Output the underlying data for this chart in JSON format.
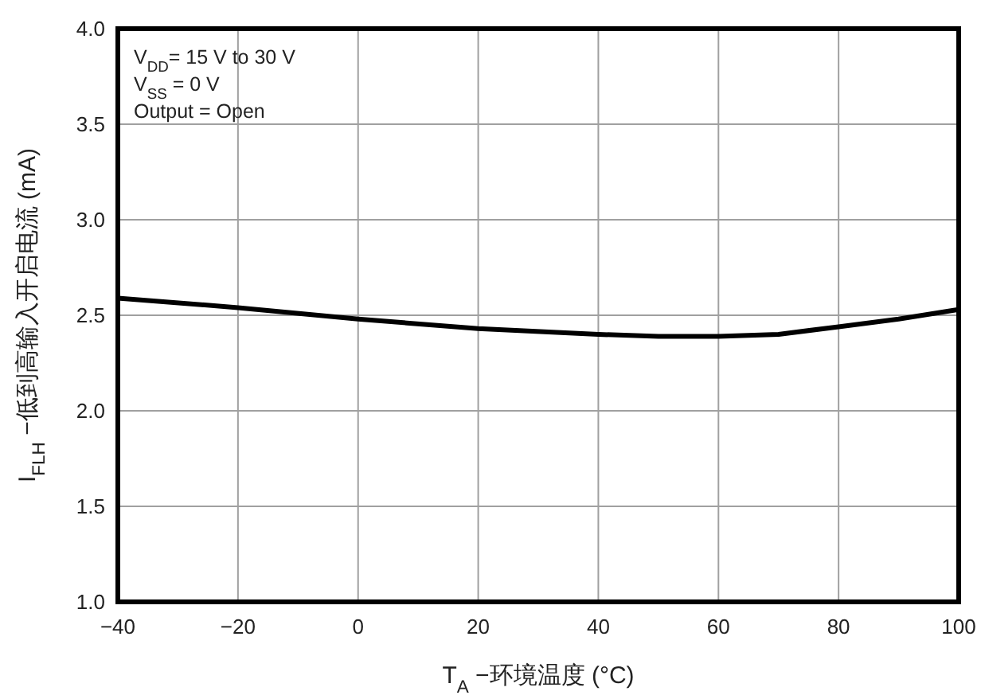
{
  "chart_data": {
    "type": "line",
    "xlabel": "T$_{A}$ −环境温度 (°C)",
    "ylabel": "I$_{FLH}$ −低到高输入开启电流 (mA)",
    "annotations": [
      "V$_{DD}$= 15 V to 30 V",
      "V$_{SS}$ = 0 V",
      "Output = Open"
    ],
    "x": [
      -40,
      -20,
      0,
      20,
      40,
      50,
      60,
      70,
      80,
      90,
      100
    ],
    "series": [
      {
        "color": "#000000",
        "values": [
          2.59,
          2.54,
          2.48,
          2.43,
          2.4,
          2.39,
          2.39,
          2.4,
          2.44,
          2.48,
          2.53
        ]
      }
    ],
    "xlim": [
      -40,
      100
    ],
    "ylim": [
      1.0,
      4.0
    ],
    "xticks": [
      {
        "value": -40,
        "label": "−40"
      },
      {
        "value": -20,
        "label": "−20"
      },
      0,
      20,
      40,
      60,
      80,
      100
    ],
    "yticks": [
      {
        "value": 1.0,
        "label": "1.0"
      },
      {
        "value": 1.5,
        "label": "1.5"
      },
      {
        "value": 2.0,
        "label": "2.0"
      },
      {
        "value": 2.5,
        "label": "2.5"
      },
      {
        "value": 3.0,
        "label": "3.0"
      },
      {
        "value": 3.5,
        "label": "3.5"
      },
      {
        "value": 4.0,
        "label": "4.0"
      }
    ],
    "grid": true,
    "marker": "none",
    "line_style": "solid"
  }
}
